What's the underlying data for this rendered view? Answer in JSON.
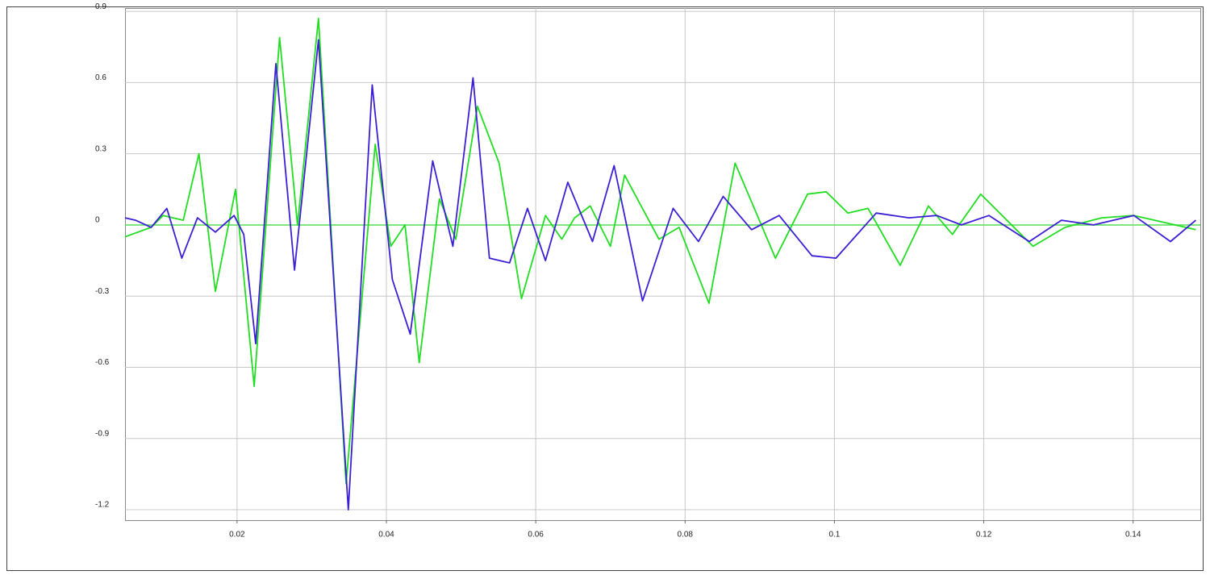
{
  "chart_data": {
    "type": "line",
    "x": [
      0.005,
      0.0064,
      0.0085,
      0.0106,
      0.0126,
      0.0147,
      0.0171,
      0.0196,
      0.0209,
      0.0225,
      0.0252,
      0.0277,
      0.0309,
      0.0349,
      0.0381,
      0.0408,
      0.0432,
      0.0462,
      0.0489,
      0.0516,
      0.0538,
      0.0565,
      0.0589,
      0.0613,
      0.0643,
      0.0676,
      0.0705,
      0.0743,
      0.0784,
      0.0818,
      0.0851,
      0.0889,
      0.0926,
      0.097,
      0.1002,
      0.1056,
      0.11,
      0.1137,
      0.117,
      0.1207,
      0.1261,
      0.1304,
      0.1347,
      0.1401,
      0.145,
      0.1484
    ],
    "series": [
      {
        "color": "#3b1fd4",
        "x": [
          0.005,
          0.0064,
          0.0085,
          0.0106,
          0.0126,
          0.0147,
          0.0171,
          0.0196,
          0.0209,
          0.0225,
          0.0252,
          0.0277,
          0.0309,
          0.0349,
          0.0381,
          0.0408,
          0.0432,
          0.0462,
          0.0489,
          0.0516,
          0.0538,
          0.0565,
          0.0589,
          0.0613,
          0.0643,
          0.0676,
          0.0705,
          0.0743,
          0.0784,
          0.0818,
          0.0851,
          0.0889,
          0.0926,
          0.097,
          0.1002,
          0.1056,
          0.11,
          0.1137,
          0.117,
          0.1207,
          0.1261,
          0.1304,
          0.1347,
          0.1401,
          0.145,
          0.1484
        ],
        "values": [
          0.03,
          0.02,
          -0.01,
          0.07,
          -0.14,
          0.03,
          -0.03,
          0.04,
          -0.04,
          -0.5,
          0.68,
          -0.19,
          0.78,
          -1.2,
          0.59,
          -0.23,
          -0.46,
          0.27,
          -0.09,
          0.62,
          -0.14,
          -0.16,
          0.07,
          -0.15,
          0.18,
          -0.07,
          0.25,
          -0.32,
          0.07,
          -0.07,
          0.12,
          -0.02,
          0.04,
          -0.13,
          -0.14,
          0.05,
          0.03,
          0.04,
          0,
          0.04,
          -0.07,
          0.02,
          0,
          0.04,
          -0.07,
          0.02
        ]
      },
      {
        "color": "#22dd22",
        "x": [
          0.005,
          0.0085,
          0.0101,
          0.0128,
          0.0149,
          0.0171,
          0.0198,
          0.0223,
          0.0257,
          0.0281,
          0.0309,
          0.0346,
          0.0385,
          0.0406,
          0.0425,
          0.0444,
          0.0471,
          0.0493,
          0.0522,
          0.0551,
          0.0581,
          0.0613,
          0.0635,
          0.0652,
          0.0673,
          0.07,
          0.0719,
          0.0765,
          0.0792,
          0.0832,
          0.0867,
          0.0921,
          0.0964,
          0.0989,
          0.1018,
          0.1045,
          0.1088,
          0.1126,
          0.1158,
          0.1196,
          0.1266,
          0.1309,
          0.1358,
          0.1401,
          0.1484
        ],
        "values": [
          -0.05,
          -0.01,
          0.04,
          0.02,
          0.3,
          -0.28,
          0.15,
          -0.68,
          0.79,
          0,
          0.87,
          -1.09,
          0.34,
          -0.09,
          0,
          -0.58,
          0.11,
          -0.06,
          0.5,
          0.26,
          -0.31,
          0.04,
          -0.06,
          0.03,
          0.08,
          -0.09,
          0.21,
          -0.06,
          -0.01,
          -0.33,
          0.26,
          -0.14,
          0.13,
          0.14,
          0.05,
          0.07,
          -0.17,
          0.08,
          -0.04,
          0.13,
          -0.09,
          -0.01,
          0.03,
          0.04,
          -0.02
        ]
      }
    ],
    "zero_line_color": "#55dd55",
    "xlim": [
      0.005,
      0.149
    ],
    "xticks": [
      0.02,
      0.04,
      0.06,
      0.08,
      0.1,
      0.12,
      0.14
    ],
    "ylim": [
      -1.244,
      0.914
    ],
    "yticks": [
      0.9,
      0.6,
      0.3,
      0,
      -0.3,
      -0.6,
      -0.9,
      -1.2
    ],
    "grid": true
  }
}
